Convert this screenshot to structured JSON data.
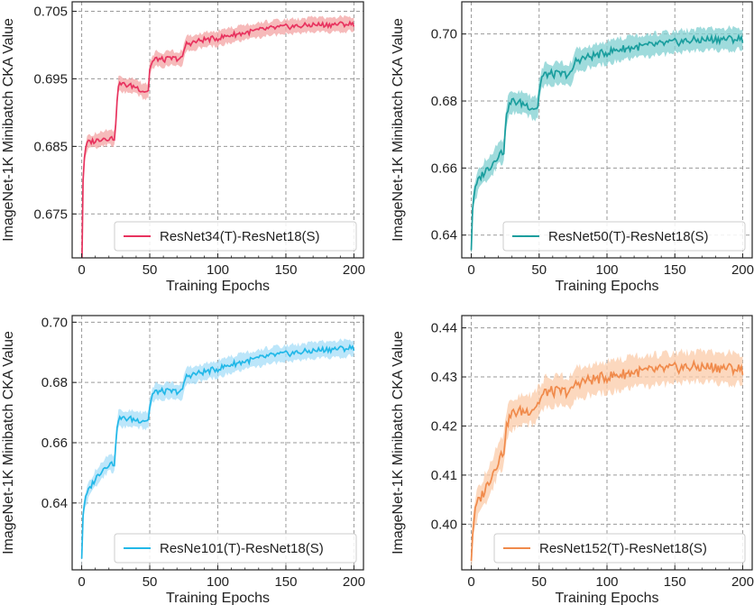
{
  "chart_data": [
    {
      "type": "line",
      "xlabel": "Training Epochs",
      "ylabel": "ImageNet-1K Minibatch CKA Value",
      "xlim": [
        -7,
        207
      ],
      "ylim": [
        0.6685,
        0.7064
      ],
      "xticks": [
        0,
        50,
        100,
        150,
        200
      ],
      "yticks": [
        "0.675",
        "0.685",
        "0.695",
        "0.705"
      ],
      "grid": true,
      "legend_position": "lower-right",
      "series": [
        {
          "name": "ResNet34(T)-ResNet18(S)",
          "color": "#e8335f",
          "band_color": "#f3a3a3",
          "band": 0.0014,
          "x": [
            0,
            1,
            2,
            4,
            6,
            10,
            15,
            20,
            24,
            25,
            27,
            30,
            35,
            40,
            45,
            49,
            50,
            52,
            55,
            60,
            65,
            70,
            74,
            75,
            77,
            80,
            90,
            100,
            110,
            120,
            130,
            140,
            150,
            160,
            170,
            180,
            190,
            200
          ],
          "y": [
            0.6655,
            0.68,
            0.6835,
            0.6855,
            0.6857,
            0.6858,
            0.6862,
            0.6862,
            0.6862,
            0.6885,
            0.6942,
            0.6942,
            0.694,
            0.6938,
            0.6932,
            0.6932,
            0.6965,
            0.6975,
            0.698,
            0.6978,
            0.698,
            0.698,
            0.698,
            0.6992,
            0.7002,
            0.7003,
            0.7008,
            0.701,
            0.7015,
            0.7018,
            0.7022,
            0.7025,
            0.7027,
            0.7028,
            0.703,
            0.703,
            0.7031,
            0.7031
          ]
        }
      ]
    },
    {
      "type": "line",
      "xlabel": "Training Epochs",
      "ylabel": "ImageNet-1K Minibatch CKA Value",
      "xlim": [
        -7,
        207
      ],
      "ylim": [
        0.6332,
        0.7096
      ],
      "xticks": [
        0,
        50,
        100,
        150,
        200
      ],
      "yticks": [
        "0.64",
        "0.66",
        "0.68",
        "0.70"
      ],
      "grid": true,
      "legend_position": "lower-right",
      "series": [
        {
          "name": "ResNet50(T)-ResNet18(S)",
          "color": "#1a9e9e",
          "band_color": "#7fcfd0",
          "band": 0.0042,
          "x": [
            0,
            1,
            2,
            4,
            6,
            10,
            15,
            20,
            24,
            25,
            27,
            30,
            35,
            40,
            45,
            49,
            50,
            52,
            55,
            60,
            65,
            70,
            74,
            75,
            77,
            80,
            90,
            100,
            110,
            120,
            130,
            140,
            150,
            160,
            170,
            180,
            190,
            200
          ],
          "y": [
            0.6355,
            0.648,
            0.652,
            0.655,
            0.657,
            0.659,
            0.661,
            0.664,
            0.665,
            0.672,
            0.678,
            0.68,
            0.6795,
            0.679,
            0.678,
            0.678,
            0.683,
            0.687,
            0.688,
            0.688,
            0.688,
            0.688,
            0.688,
            0.69,
            0.692,
            0.6925,
            0.6935,
            0.6945,
            0.6955,
            0.696,
            0.6965,
            0.697,
            0.6975,
            0.698,
            0.6982,
            0.6985,
            0.6985,
            0.6985
          ]
        }
      ]
    },
    {
      "type": "line",
      "xlabel": "Training Epochs",
      "ylabel": "ImageNet-1K Minibatch CKA Value",
      "xlim": [
        -7,
        207
      ],
      "ylim": [
        0.6178,
        0.7022
      ],
      "xticks": [
        0,
        50,
        100,
        150,
        200
      ],
      "yticks": [
        "0.64",
        "0.66",
        "0.68",
        "0.70"
      ],
      "grid": true,
      "legend_position": "lower-right",
      "series": [
        {
          "name": "ResNe101(T)-ResNet18(S)",
          "color": "#22b8e8",
          "band_color": "#a6ddf8",
          "band": 0.0035,
          "x": [
            0,
            1,
            2,
            4,
            6,
            10,
            15,
            20,
            24,
            25,
            27,
            30,
            35,
            40,
            45,
            49,
            50,
            52,
            55,
            60,
            65,
            70,
            74,
            75,
            77,
            80,
            90,
            100,
            110,
            120,
            130,
            140,
            150,
            160,
            170,
            180,
            190,
            200
          ],
          "y": [
            0.6215,
            0.636,
            0.64,
            0.643,
            0.645,
            0.648,
            0.651,
            0.653,
            0.653,
            0.66,
            0.668,
            0.668,
            0.668,
            0.6675,
            0.6675,
            0.6675,
            0.672,
            0.676,
            0.677,
            0.677,
            0.677,
            0.677,
            0.677,
            0.68,
            0.682,
            0.6825,
            0.6835,
            0.6845,
            0.686,
            0.687,
            0.688,
            0.689,
            0.6895,
            0.69,
            0.6905,
            0.691,
            0.6912,
            0.6915
          ]
        }
      ]
    },
    {
      "type": "line",
      "xlabel": "Training Epochs",
      "ylabel": "ImageNet-1K Minibatch CKA Value",
      "xlim": [
        -7,
        207
      ],
      "ylim": [
        0.3907,
        0.4425
      ],
      "xticks": [
        0,
        50,
        100,
        150,
        200
      ],
      "yticks": [
        "0.40",
        "0.41",
        "0.42",
        "0.43",
        "0.44"
      ],
      "grid": true,
      "legend_position": "lower-right",
      "series": [
        {
          "name": "ResNet152(T)-ResNet18(S)",
          "color": "#f08a4b",
          "band_color": "#fbcba8",
          "band": 0.004,
          "x": [
            0,
            1,
            2,
            4,
            6,
            10,
            15,
            20,
            24,
            25,
            27,
            30,
            35,
            40,
            45,
            49,
            50,
            52,
            55,
            60,
            65,
            70,
            74,
            75,
            77,
            80,
            90,
            100,
            110,
            120,
            130,
            140,
            150,
            160,
            170,
            180,
            190,
            200
          ],
          "y": [
            0.3925,
            0.398,
            0.401,
            0.404,
            0.405,
            0.407,
            0.41,
            0.413,
            0.415,
            0.418,
            0.421,
            0.4225,
            0.423,
            0.423,
            0.4235,
            0.4245,
            0.425,
            0.426,
            0.427,
            0.427,
            0.427,
            0.427,
            0.427,
            0.428,
            0.4285,
            0.429,
            0.4295,
            0.43,
            0.4305,
            0.431,
            0.4312,
            0.4315,
            0.4318,
            0.432,
            0.432,
            0.432,
            0.4318,
            0.4315
          ]
        }
      ]
    }
  ]
}
